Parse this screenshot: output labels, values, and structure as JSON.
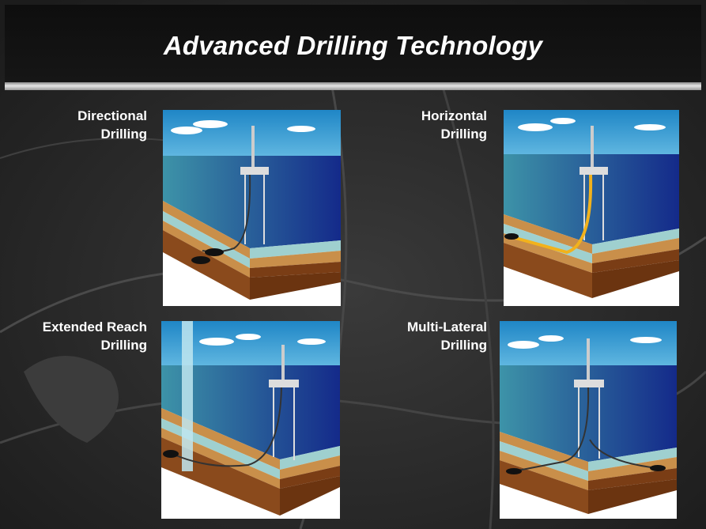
{
  "slide": {
    "title": "Advanced Drilling Technology"
  },
  "panels": [
    {
      "line1": "Directional",
      "line2": "Drilling",
      "illustration": "directional-drilling-illustration"
    },
    {
      "line1": "Horizontal",
      "line2": "Drilling",
      "illustration": "horizontal-drilling-illustration"
    },
    {
      "line1": "Extended Reach",
      "line2": "Drilling",
      "illustration": "extended-reach-drilling-illustration"
    },
    {
      "line1": "Multi-Lateral",
      "line2": "Drilling",
      "illustration": "multi-lateral-drilling-illustration"
    }
  ],
  "colors": {
    "background": "#2a2a2a",
    "title_bar": "#111111",
    "title_text": "#ffffff",
    "sky": "#2c8fc9",
    "ocean_deep": "#142a8a",
    "ocean_light": "#3d93a8",
    "seabed_tan": "#c98f4a",
    "seabed_teal": "#9fd0cf",
    "rock_brown": "#8a4a1c",
    "well_path": "#333333",
    "horizontal_path": "#f2b21c"
  }
}
